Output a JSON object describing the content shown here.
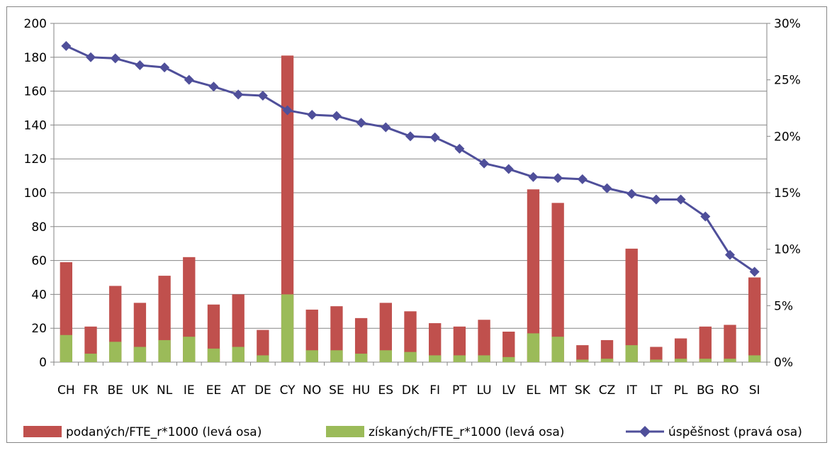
{
  "chart_data": {
    "type": "bar",
    "categories": [
      "CH",
      "FR",
      "BE",
      "UK",
      "NL",
      "IE",
      "EE",
      "AT",
      "DE",
      "CY",
      "NO",
      "SE",
      "HU",
      "ES",
      "DK",
      "FI",
      "PT",
      "LU",
      "LV",
      "EL",
      "MT",
      "SK",
      "CZ",
      "IT",
      "LT",
      "PL",
      "BG",
      "RO",
      "SI"
    ],
    "series": [
      {
        "name": "podaných/FTE_r*1000 (levá osa)",
        "kind": "bar-total",
        "color": "#C0504D",
        "values": [
          59,
          21,
          45,
          35,
          51,
          62,
          34,
          40,
          19,
          181,
          31,
          33,
          26,
          35,
          30,
          23,
          21,
          25,
          18,
          102,
          94,
          10,
          13,
          67,
          9,
          14,
          21,
          22,
          50
        ]
      },
      {
        "name": "získaných/FTE_r*1000 (levá osa)",
        "kind": "bar-overlay",
        "color": "#9BBB59",
        "values": [
          16,
          5,
          12,
          9,
          13,
          15,
          8,
          9,
          4,
          40,
          7,
          7,
          5,
          7,
          6,
          4,
          4,
          4,
          3,
          17,
          15,
          1.5,
          2,
          10,
          1.5,
          2,
          2,
          2,
          4
        ]
      },
      {
        "name": "úspěšnost (pravá osa)",
        "kind": "line",
        "axis": "right",
        "color": "#4F4F9A",
        "values": [
          0.28,
          0.27,
          0.269,
          0.263,
          0.261,
          0.25,
          0.244,
          0.237,
          0.236,
          0.223,
          0.219,
          0.218,
          0.212,
          0.208,
          0.2,
          0.199,
          0.189,
          0.176,
          0.171,
          0.164,
          0.163,
          0.162,
          0.154,
          0.149,
          0.144,
          0.144,
          0.129,
          0.095,
          0.08
        ]
      }
    ],
    "y_left": {
      "min": 0,
      "max": 200,
      "ticks": [
        "0",
        "20",
        "40",
        "60",
        "80",
        "100",
        "120",
        "140",
        "160",
        "180",
        "200"
      ]
    },
    "y_right": {
      "min": 0,
      "max": 0.3,
      "ticks": [
        "0%",
        "5%",
        "10%",
        "15%",
        "20%",
        "25%",
        "30%"
      ]
    },
    "grid": true,
    "legend_position": "bottom",
    "title": "",
    "xlabel": "",
    "ylabel": ""
  }
}
